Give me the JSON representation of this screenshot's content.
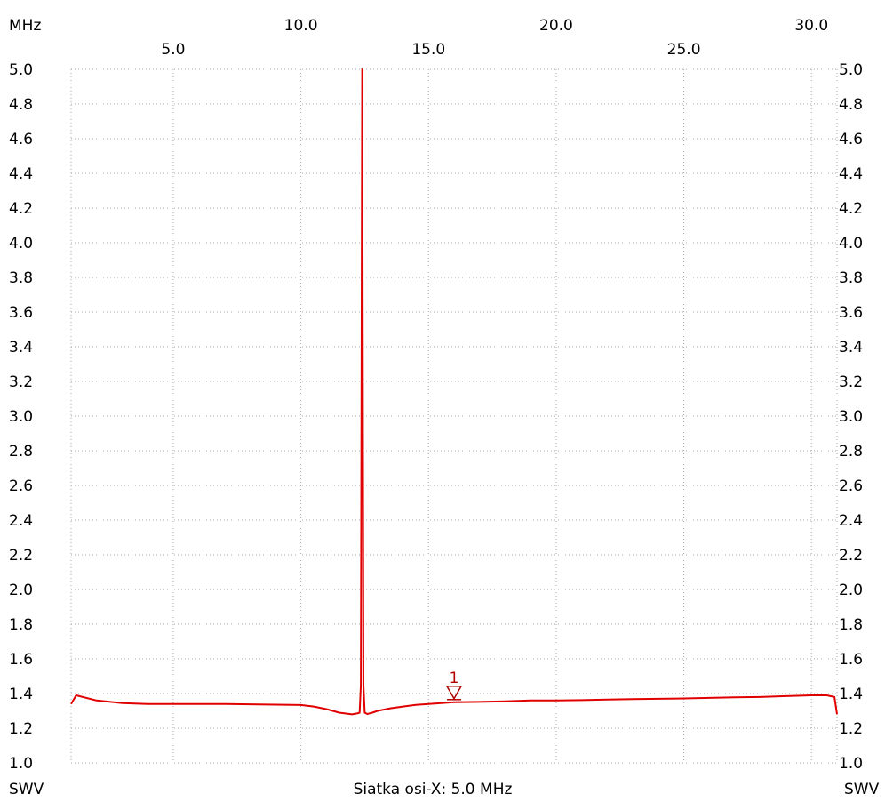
{
  "chart_data": {
    "type": "line",
    "x_unit_label": "MHz",
    "x_tick_labels_top": [
      "10.0",
      "20.0",
      "30.0"
    ],
    "x_tick_labels_bottom": [
      "5.0",
      "15.0",
      "25.0"
    ],
    "xlim": [
      1.0,
      31.0
    ],
    "ylim": [
      1.0,
      5.0
    ],
    "y_ticks": [
      "5.0",
      "4.8",
      "4.6",
      "4.4",
      "4.2",
      "4.0",
      "3.8",
      "3.6",
      "3.4",
      "3.2",
      "3.0",
      "2.8",
      "2.6",
      "2.4",
      "2.2",
      "2.0",
      "1.8",
      "1.6",
      "1.4",
      "1.2",
      "1.0"
    ],
    "y_label_left": "SWV",
    "y_label_right": "SWV",
    "footer": "Siatka osi-X: 5.0 MHz",
    "grid": true,
    "series": [
      {
        "color": "#e00000",
        "x": [
          1.0,
          1.2,
          2.0,
          3.0,
          4.0,
          5.0,
          6.0,
          7.0,
          8.0,
          9.0,
          10.0,
          10.5,
          11.0,
          11.5,
          12.0,
          12.2,
          12.3,
          12.35,
          12.4,
          12.45,
          12.5,
          12.6,
          12.8,
          13.0,
          13.5,
          14.0,
          14.5,
          15.0,
          15.5,
          16.0,
          17.0,
          18.0,
          19.0,
          20.0,
          21.0,
          22.0,
          23.0,
          24.0,
          25.0,
          26.0,
          27.0,
          28.0,
          29.0,
          30.0,
          30.6,
          30.9,
          31.0
        ],
        "values": [
          1.34,
          1.39,
          1.36,
          1.345,
          1.34,
          1.34,
          1.34,
          1.34,
          1.338,
          1.336,
          1.334,
          1.325,
          1.31,
          1.29,
          1.28,
          1.285,
          1.29,
          1.45,
          5.0,
          1.45,
          1.29,
          1.282,
          1.29,
          1.3,
          1.315,
          1.325,
          1.335,
          1.34,
          1.345,
          1.35,
          1.352,
          1.355,
          1.36,
          1.36,
          1.362,
          1.365,
          1.368,
          1.37,
          1.372,
          1.375,
          1.378,
          1.38,
          1.385,
          1.39,
          1.39,
          1.38,
          1.28
        ]
      }
    ],
    "markers": [
      {
        "label": "1",
        "x": 16.0,
        "y": 1.36
      }
    ]
  }
}
